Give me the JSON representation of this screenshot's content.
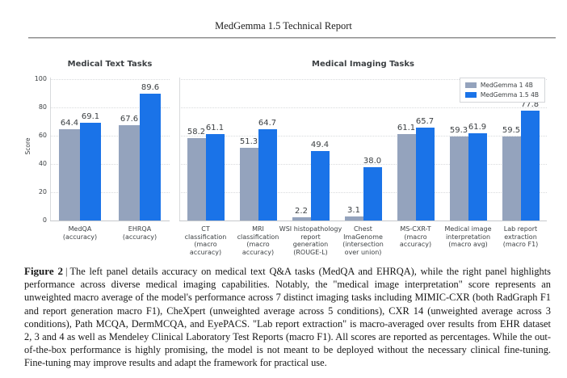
{
  "header": {
    "title": "MedGemma 1.5 Technical Report"
  },
  "figure": {
    "caption_label": "Figure 2",
    "caption_separator": "|",
    "caption_text": "The left panel details accuracy on medical text Q&A tasks (MedQA and EHRQA), while the right panel highlights performance across diverse medical imaging capabilities. Notably, the \"medical image interpretation\" score represents an unweighted macro average of the model's performance across 7 distinct imaging tasks including MIMIC-CXR (both RadGraph F1 and report generation macro F1), CheXpert (unweighted average across 5 conditions), CXR 14 (unweighted average across 3 conditions), Path MCQA, DermMCQA, and EyePACS. \"Lab report extraction\" is macro-averaged over results from EHR dataset 2, 3 and 4 as well as Mendeley Clinical Laboratory Test Reports (macro F1). All scores are reported as percentages. While the out-of-the-box performance is highly promising, the model is not meant to be deployed without the necessary clinical fine-tuning. Fine-tuning may improve results and adapt the framework for practical use."
  },
  "colors": {
    "medgemma_1_4b": "#94a3bd",
    "medgemma_1_5_4b": "#1a73e8",
    "grid": "#d8dadc",
    "text": "#3c4043"
  },
  "chart_data": [
    {
      "type": "bar",
      "title": "Medical Text Tasks",
      "ylabel": "Score",
      "xlabel": "",
      "ylim": [
        0,
        100
      ],
      "yticks": [
        0,
        20,
        40,
        60,
        80,
        100
      ],
      "grid": "horizontal-dotted",
      "legend_position": "none",
      "categories": [
        {
          "label": "MedQA (accuracy)",
          "lines": [
            "MedQA",
            "(accuracy)"
          ]
        },
        {
          "label": "EHRQA (accuracy)",
          "lines": [
            "EHRQA",
            "(accuracy)"
          ]
        }
      ],
      "series": [
        {
          "name": "MedGemma 1 4B",
          "color": "#94a3bd",
          "values": [
            64.4,
            67.6
          ]
        },
        {
          "name": "MedGemma 1.5 4B",
          "color": "#1a73e8",
          "values": [
            69.1,
            89.6
          ]
        }
      ]
    },
    {
      "type": "bar",
      "title": "Medical Imaging Tasks",
      "ylabel": "",
      "xlabel": "",
      "ylim": [
        0,
        100
      ],
      "yticks": [
        0,
        20,
        40,
        60,
        80,
        100
      ],
      "grid": "horizontal-dotted",
      "legend_position": "upper right",
      "categories": [
        {
          "label": "CT classification (macro accuracy)",
          "lines": [
            "CT",
            "classification",
            "(macro",
            "accuracy)"
          ]
        },
        {
          "label": "MRI classification (macro accuracy)",
          "lines": [
            "MRI",
            "classification",
            "(macro",
            "accuracy)"
          ]
        },
        {
          "label": "WSI histopathology report generation (ROUGE-L)",
          "lines": [
            "WSI histopathology",
            "report",
            "generation",
            "(ROUGE-L)"
          ]
        },
        {
          "label": "Chest ImaGenome (intersection over union)",
          "lines": [
            "Chest",
            "ImaGenome",
            "(intersection",
            "over union)"
          ]
        },
        {
          "label": "MS-CXR-T (macro accuracy)",
          "lines": [
            "MS-CXR-T",
            "(macro",
            "accuracy)"
          ]
        },
        {
          "label": "Medical image interpretation (macro avg)",
          "lines": [
            "Medical image",
            "interpretation",
            "(macro avg)"
          ]
        },
        {
          "label": "Lab report extraction (macro F1)",
          "lines": [
            "Lab report",
            "extraction",
            "(macro F1)"
          ]
        }
      ],
      "series": [
        {
          "name": "MedGemma 1 4B",
          "color": "#94a3bd",
          "values": [
            58.2,
            51.3,
            2.2,
            3.1,
            61.1,
            59.3,
            59.5
          ]
        },
        {
          "name": "MedGemma 1.5 4B",
          "color": "#1a73e8",
          "values": [
            61.1,
            64.7,
            49.4,
            38.0,
            65.7,
            61.9,
            77.8
          ]
        }
      ]
    }
  ]
}
